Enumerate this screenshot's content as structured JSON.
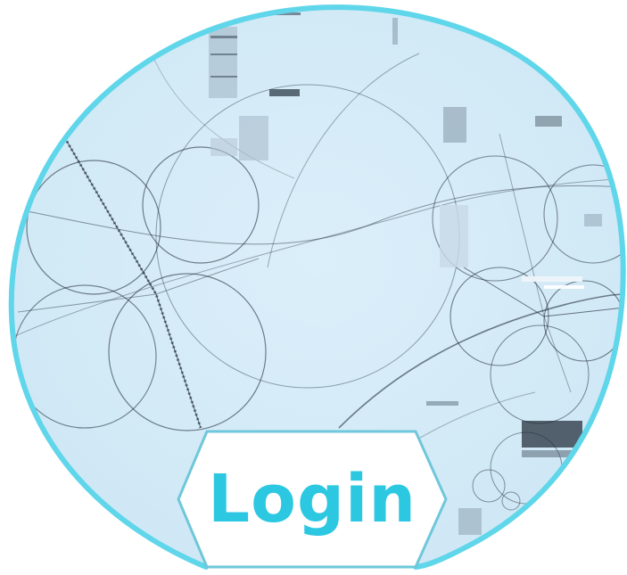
{
  "login": {
    "label": "Login"
  },
  "colors": {
    "ring": "#5fd6ea",
    "background": "#d6ecf8",
    "label_text": "#2cc8e2",
    "label_plate": "#ffffff",
    "label_border": "#6fc7da",
    "line_art": "#14202c"
  },
  "icons": {
    "background_art": "circle-fractal-art"
  }
}
